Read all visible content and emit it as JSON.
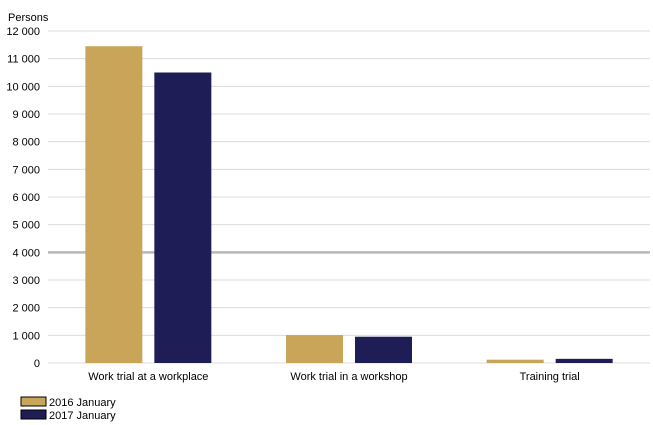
{
  "chart_data": {
    "type": "bar",
    "title": "",
    "ylabel": "Persons",
    "xlabel": "",
    "categories": [
      "Work trial at a workplace",
      "Work trial in a workshop",
      "Training trial"
    ],
    "series": [
      {
        "name": "2016 January",
        "color": "#c9a55a",
        "values": [
          11450,
          1010,
          120
        ]
      },
      {
        "name": "2017 January",
        "color": "#1f1d56",
        "values": [
          10500,
          950,
          150
        ]
      }
    ],
    "ylim": [
      0,
      12000
    ],
    "yticks": [
      {
        "value": 0,
        "label": "0"
      },
      {
        "value": 1000,
        "label": "1 000"
      },
      {
        "value": 2000,
        "label": "2 000"
      },
      {
        "value": 3000,
        "label": "3 000"
      },
      {
        "value": 4000,
        "label": "4 000"
      },
      {
        "value": 5000,
        "label": "5 000"
      },
      {
        "value": 6000,
        "label": "6 000"
      },
      {
        "value": 7000,
        "label": "7 000"
      },
      {
        "value": 8000,
        "label": "8 000"
      },
      {
        "value": 9000,
        "label": "9 000"
      },
      {
        "value": 10000,
        "label": "10 000"
      },
      {
        "value": 11000,
        "label": "11 000"
      },
      {
        "value": 12000,
        "label": "12 000"
      }
    ],
    "highlighted_gridline": 4000,
    "grid": true,
    "legend_position": "bottom-left"
  }
}
